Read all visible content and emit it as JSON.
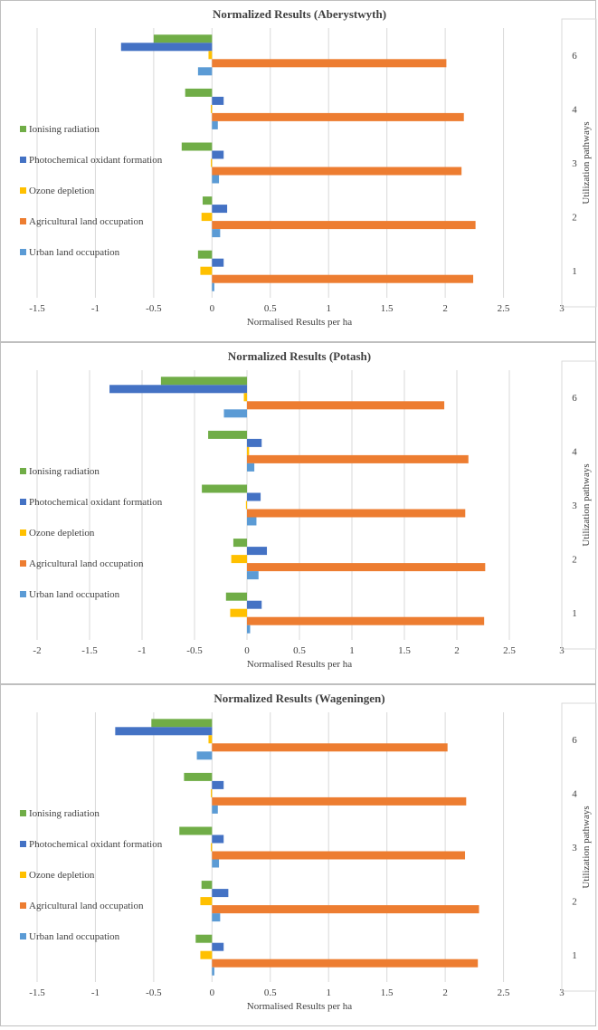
{
  "colors": {
    "Ionising radiation": "#70ad47",
    "Photochemical oxidant formation": "#4472c4",
    "Ozone depletion": "#ffc000",
    "Agricultural land occupation": "#ed7d31",
    "Urban land occupation": "#5b9bd5",
    "grid": "#d9d9d9"
  },
  "chart_data": [
    {
      "type": "bar",
      "orientation": "horizontal",
      "title": "Normalized Results (Aberystwyth)",
      "xlabel": "Normalised Results per ha",
      "ylabel": "Utilization pathways",
      "xlim": [
        -1.5,
        3
      ],
      "xticks": [
        -1.5,
        -1,
        -0.5,
        0,
        0.5,
        1,
        1.5,
        2,
        2.5,
        3
      ],
      "xtick_labels": [
        "-1.5",
        "-1",
        "-0.5",
        "0",
        "0.5",
        "1",
        "1.5",
        "2",
        "2.5",
        "3"
      ],
      "categories": [
        "1",
        "2",
        "3",
        "4",
        "6"
      ],
      "legend": [
        "Ionising radiation",
        "Photochemical oxidant formation",
        "Ozone depletion",
        "Agricultural land occupation",
        "Urban land occupation"
      ],
      "series": [
        {
          "name": "Ionising radiation",
          "values": [
            -0.12,
            -0.08,
            -0.26,
            -0.23,
            -0.5
          ]
        },
        {
          "name": "Photochemical oxidant formation",
          "values": [
            0.1,
            0.13,
            0.1,
            0.1,
            -0.78
          ]
        },
        {
          "name": "Ozone depletion",
          "values": [
            -0.1,
            -0.09,
            -0.01,
            -0.01,
            -0.03
          ]
        },
        {
          "name": "Agricultural land occupation",
          "values": [
            2.24,
            2.26,
            2.14,
            2.16,
            2.01
          ]
        },
        {
          "name": "Urban land occupation",
          "values": [
            0.02,
            0.07,
            0.06,
            0.05,
            -0.12
          ]
        }
      ]
    },
    {
      "type": "bar",
      "orientation": "horizontal",
      "title": "Normalized Results (Potash)",
      "xlabel": "Normalised Results per ha",
      "ylabel": "Utilization pathways",
      "xlim": [
        -2,
        3
      ],
      "xticks": [
        -2,
        -1.5,
        -1,
        -0.5,
        0,
        0.5,
        1,
        1.5,
        2,
        2.5,
        3
      ],
      "xtick_labels": [
        "-2",
        "-1.5",
        "-1",
        "-0.5",
        "0",
        "0.5",
        "1",
        "1.5",
        "2",
        "2.5",
        "3"
      ],
      "categories": [
        "1",
        "2",
        "3",
        "4",
        "6"
      ],
      "legend": [
        "Ionising radiation",
        "Photochemical oxidant formation",
        "Ozone depletion",
        "Agricultural land occupation",
        "Urban land occupation"
      ],
      "series": [
        {
          "name": "Ionising radiation",
          "values": [
            -0.2,
            -0.13,
            -0.43,
            -0.37,
            -0.82
          ]
        },
        {
          "name": "Photochemical oxidant formation",
          "values": [
            0.14,
            0.19,
            0.13,
            0.14,
            -1.31
          ]
        },
        {
          "name": "Ozone depletion",
          "values": [
            -0.16,
            -0.15,
            -0.01,
            0.02,
            -0.03
          ]
        },
        {
          "name": "Agricultural land occupation",
          "values": [
            2.26,
            2.27,
            2.08,
            2.11,
            1.88
          ]
        },
        {
          "name": "Urban land occupation",
          "values": [
            0.03,
            0.11,
            0.09,
            0.07,
            -0.22
          ]
        }
      ]
    },
    {
      "type": "bar",
      "orientation": "horizontal",
      "title": "Normalized Results (Wageningen)",
      "xlabel": "Normalised Results per ha",
      "ylabel": "Utilization pathways",
      "xlim": [
        -1.5,
        3
      ],
      "xticks": [
        -1.5,
        -1,
        -0.5,
        0,
        0.5,
        1,
        1.5,
        2,
        2.5,
        3
      ],
      "xtick_labels": [
        "-1.5",
        "-1",
        "-0.5",
        "0",
        "0.5",
        "1",
        "1.5",
        "2",
        "2.5",
        "3"
      ],
      "categories": [
        "1",
        "2",
        "3",
        "4",
        "6"
      ],
      "legend": [
        "Ionising radiation",
        "Photochemical oxidant formation",
        "Ozone depletion",
        "Agricultural land occupation",
        "Urban land occupation"
      ],
      "series": [
        {
          "name": "Ionising radiation",
          "values": [
            -0.14,
            -0.09,
            -0.28,
            -0.24,
            -0.52
          ]
        },
        {
          "name": "Photochemical oxidant formation",
          "values": [
            0.1,
            0.14,
            0.1,
            0.1,
            -0.83
          ]
        },
        {
          "name": "Ozone depletion",
          "values": [
            -0.1,
            -0.1,
            -0.01,
            -0.01,
            -0.03
          ]
        },
        {
          "name": "Agricultural land occupation",
          "values": [
            2.28,
            2.29,
            2.17,
            2.18,
            2.02
          ]
        },
        {
          "name": "Urban land occupation",
          "values": [
            0.02,
            0.07,
            0.06,
            0.05,
            -0.13
          ]
        }
      ]
    }
  ]
}
